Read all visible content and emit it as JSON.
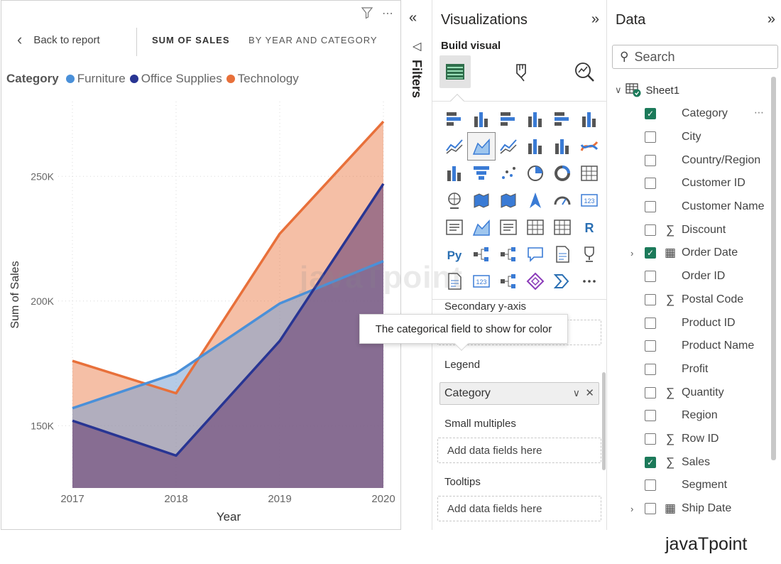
{
  "report": {
    "back_label": "Back to report",
    "title_main": "SUM OF SALES",
    "title_sub": "BY YEAR AND CATEGORY",
    "header_icons": [
      "filter-icon",
      "more-options-icon"
    ],
    "legend_title": "Category"
  },
  "chart_data": {
    "type": "area",
    "x": [
      "2017",
      "2018",
      "2019",
      "2020"
    ],
    "xlabel": "Year",
    "ylabel": "Sum of Sales",
    "yticks": [
      "150K",
      "200K",
      "250K"
    ],
    "ylim": [
      125000,
      280000
    ],
    "grid": true,
    "legend_placement": "top-left",
    "series": [
      {
        "name": "Furniture",
        "color": "#4a90d9",
        "values": [
          157000,
          171000,
          199000,
          216000
        ]
      },
      {
        "name": "Office Supplies",
        "color": "#283593",
        "values": [
          152000,
          138000,
          184000,
          247000
        ]
      },
      {
        "name": "Technology",
        "color": "#e8703a",
        "values": [
          176000,
          163000,
          227000,
          272000
        ]
      }
    ]
  },
  "filters": {
    "label": "Filters"
  },
  "viz": {
    "title": "Visualizations",
    "build_label": "Build visual",
    "gallery": [
      "stacked-bar-icon",
      "stacked-column-icon",
      "clustered-bar-icon",
      "clustered-column-icon",
      "100-bar-icon",
      "100-column-icon",
      "line-chart-icon",
      "area-chart-icon",
      "stacked-area-icon",
      "line-column-icon",
      "line-clustered-icon",
      "ribbon-chart-icon",
      "waterfall-icon",
      "funnel-icon",
      "scatter-icon",
      "pie-icon",
      "donut-icon",
      "treemap-icon",
      "map-icon",
      "filled-map-icon",
      "shape-map-icon",
      "azure-map-icon",
      "gauge-icon",
      "card-icon",
      "multirow-card-icon",
      "kpi-icon",
      "slicer-icon",
      "table-icon",
      "matrix-icon",
      "r-visual-icon",
      "python-visual-icon",
      "key-influencers-icon",
      "decomposition-tree-icon",
      "qa-icon",
      "narrative-icon",
      "metrics-icon",
      "paginated-report-icon",
      "power-apps-icon",
      "power-automate-icon",
      "diamond-icon",
      "chevron-icon",
      "more-visuals-icon"
    ],
    "selected_visual_index": 7,
    "secondary_axis_label": "Secondary y-axis",
    "tooltip_text": "The categorical field to show for color",
    "legend_well_label": "Legend",
    "legend_field": "Category",
    "small_multiples_label": "Small multiples",
    "small_multiples_placeholder": "Add data fields here",
    "tooltips_label": "Tooltips",
    "tooltips_placeholder": "Add data fields here"
  },
  "data": {
    "title": "Data",
    "search_placeholder": "Search",
    "table_name": "Sheet1",
    "fields": [
      {
        "label": "Category",
        "checked": true,
        "icon": "",
        "more": true
      },
      {
        "label": "City",
        "checked": false,
        "icon": ""
      },
      {
        "label": "Country/Region",
        "checked": false,
        "icon": ""
      },
      {
        "label": "Customer ID",
        "checked": false,
        "icon": ""
      },
      {
        "label": "Customer Name",
        "checked": false,
        "icon": ""
      },
      {
        "label": "Discount",
        "checked": false,
        "icon": "sigma"
      },
      {
        "label": "Order Date",
        "checked": true,
        "icon": "calendar",
        "expandable": true
      },
      {
        "label": "Order ID",
        "checked": false,
        "icon": ""
      },
      {
        "label": "Postal Code",
        "checked": false,
        "icon": "sigma"
      },
      {
        "label": "Product ID",
        "checked": false,
        "icon": ""
      },
      {
        "label": "Product Name",
        "checked": false,
        "icon": ""
      },
      {
        "label": "Profit",
        "checked": false,
        "icon": ""
      },
      {
        "label": "Quantity",
        "checked": false,
        "icon": "sigma"
      },
      {
        "label": "Region",
        "checked": false,
        "icon": ""
      },
      {
        "label": "Row ID",
        "checked": false,
        "icon": "sigma"
      },
      {
        "label": "Sales",
        "checked": true,
        "icon": "sigma"
      },
      {
        "label": "Segment",
        "checked": false,
        "icon": ""
      },
      {
        "label": "Ship Date",
        "checked": false,
        "icon": "calendar",
        "expandable": true
      }
    ]
  },
  "watermark": {
    "chart": "javaTpoint",
    "brand": "javaTpoint"
  }
}
